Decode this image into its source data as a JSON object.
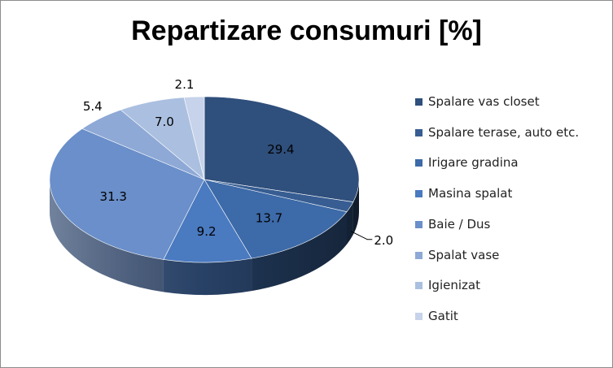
{
  "chart_data": {
    "type": "pie",
    "title": "Repartizare consumuri [%]",
    "categories": [
      "Spalare vas closet",
      "Spalare terase, auto etc.",
      "Irigare gradina",
      "Masina spalat",
      "Baie / Dus",
      "Spalat vase",
      "Igienizat",
      "Gatit"
    ],
    "values": [
      29.4,
      2.0,
      13.7,
      9.2,
      31.3,
      5.4,
      7.0,
      2.1
    ],
    "data_labels": [
      "29.4",
      "2.0",
      "13.7",
      "9.2",
      "31.3",
      "5.4",
      "7.0",
      "2.1"
    ],
    "colors": [
      "#2f4f7c",
      "#375d92",
      "#3d6aa8",
      "#4a7ac0",
      "#6a8fca",
      "#8ea9d6",
      "#abc0e0",
      "#c6d3ea"
    ],
    "legend_position": "right",
    "style": "3d"
  }
}
